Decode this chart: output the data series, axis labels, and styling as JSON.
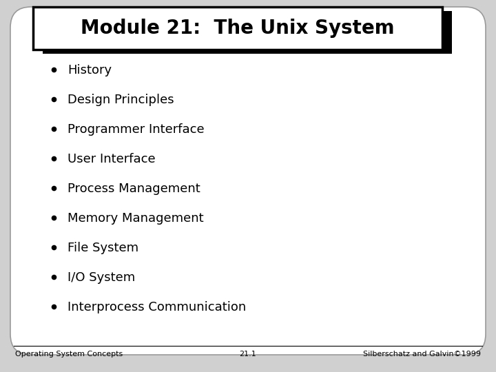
{
  "title": "Module 21:  The Unix System",
  "bullet_items": [
    "History",
    "Design Principles",
    "Programmer Interface",
    "User Interface",
    "Process Management",
    "Memory Management",
    "File System",
    "I/O System",
    "Interprocess Communication"
  ],
  "footer_left": "Operating System Concepts",
  "footer_center": "21.1",
  "footer_right": "Silberschatz and Galvin©1999",
  "bg_color": "#d0d0d0",
  "slide_bg": "#ffffff",
  "title_box_color": "#ffffff",
  "title_box_edge": "#000000",
  "text_color": "#000000",
  "title_fontsize": 20,
  "bullet_fontsize": 13,
  "footer_fontsize": 8
}
